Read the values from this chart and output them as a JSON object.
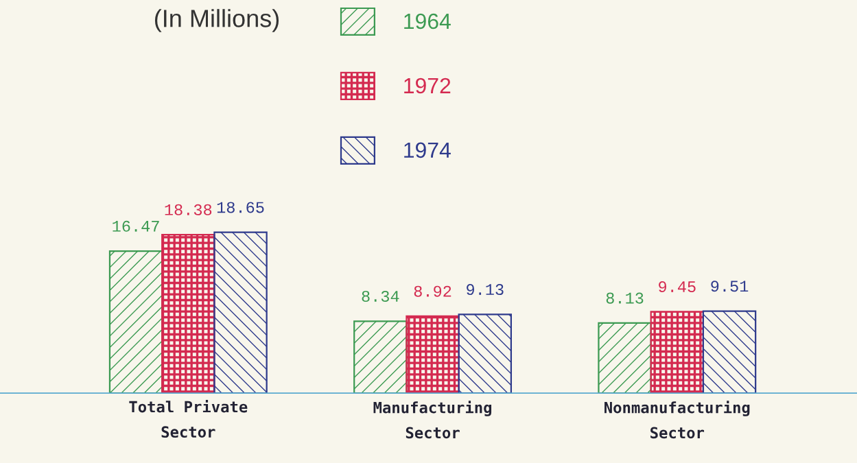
{
  "chart_data": {
    "type": "bar",
    "title": "(In Millions)",
    "categories": [
      "Total Private\nSector",
      "Manufacturing\nSector",
      "Nonmanufacturing\nSector"
    ],
    "series": [
      {
        "name": "1964",
        "color": "#3c9a52",
        "values": [
          16.47,
          8.34,
          8.13
        ]
      },
      {
        "name": "1972",
        "color": "#d42a50",
        "values": [
          18.38,
          8.92,
          9.45
        ]
      },
      {
        "name": "1974",
        "color": "#2e3a8c",
        "values": [
          18.65,
          9.13,
          9.51
        ]
      }
    ],
    "data_labels": true,
    "legend": "top",
    "tick_labels": "x"
  }
}
